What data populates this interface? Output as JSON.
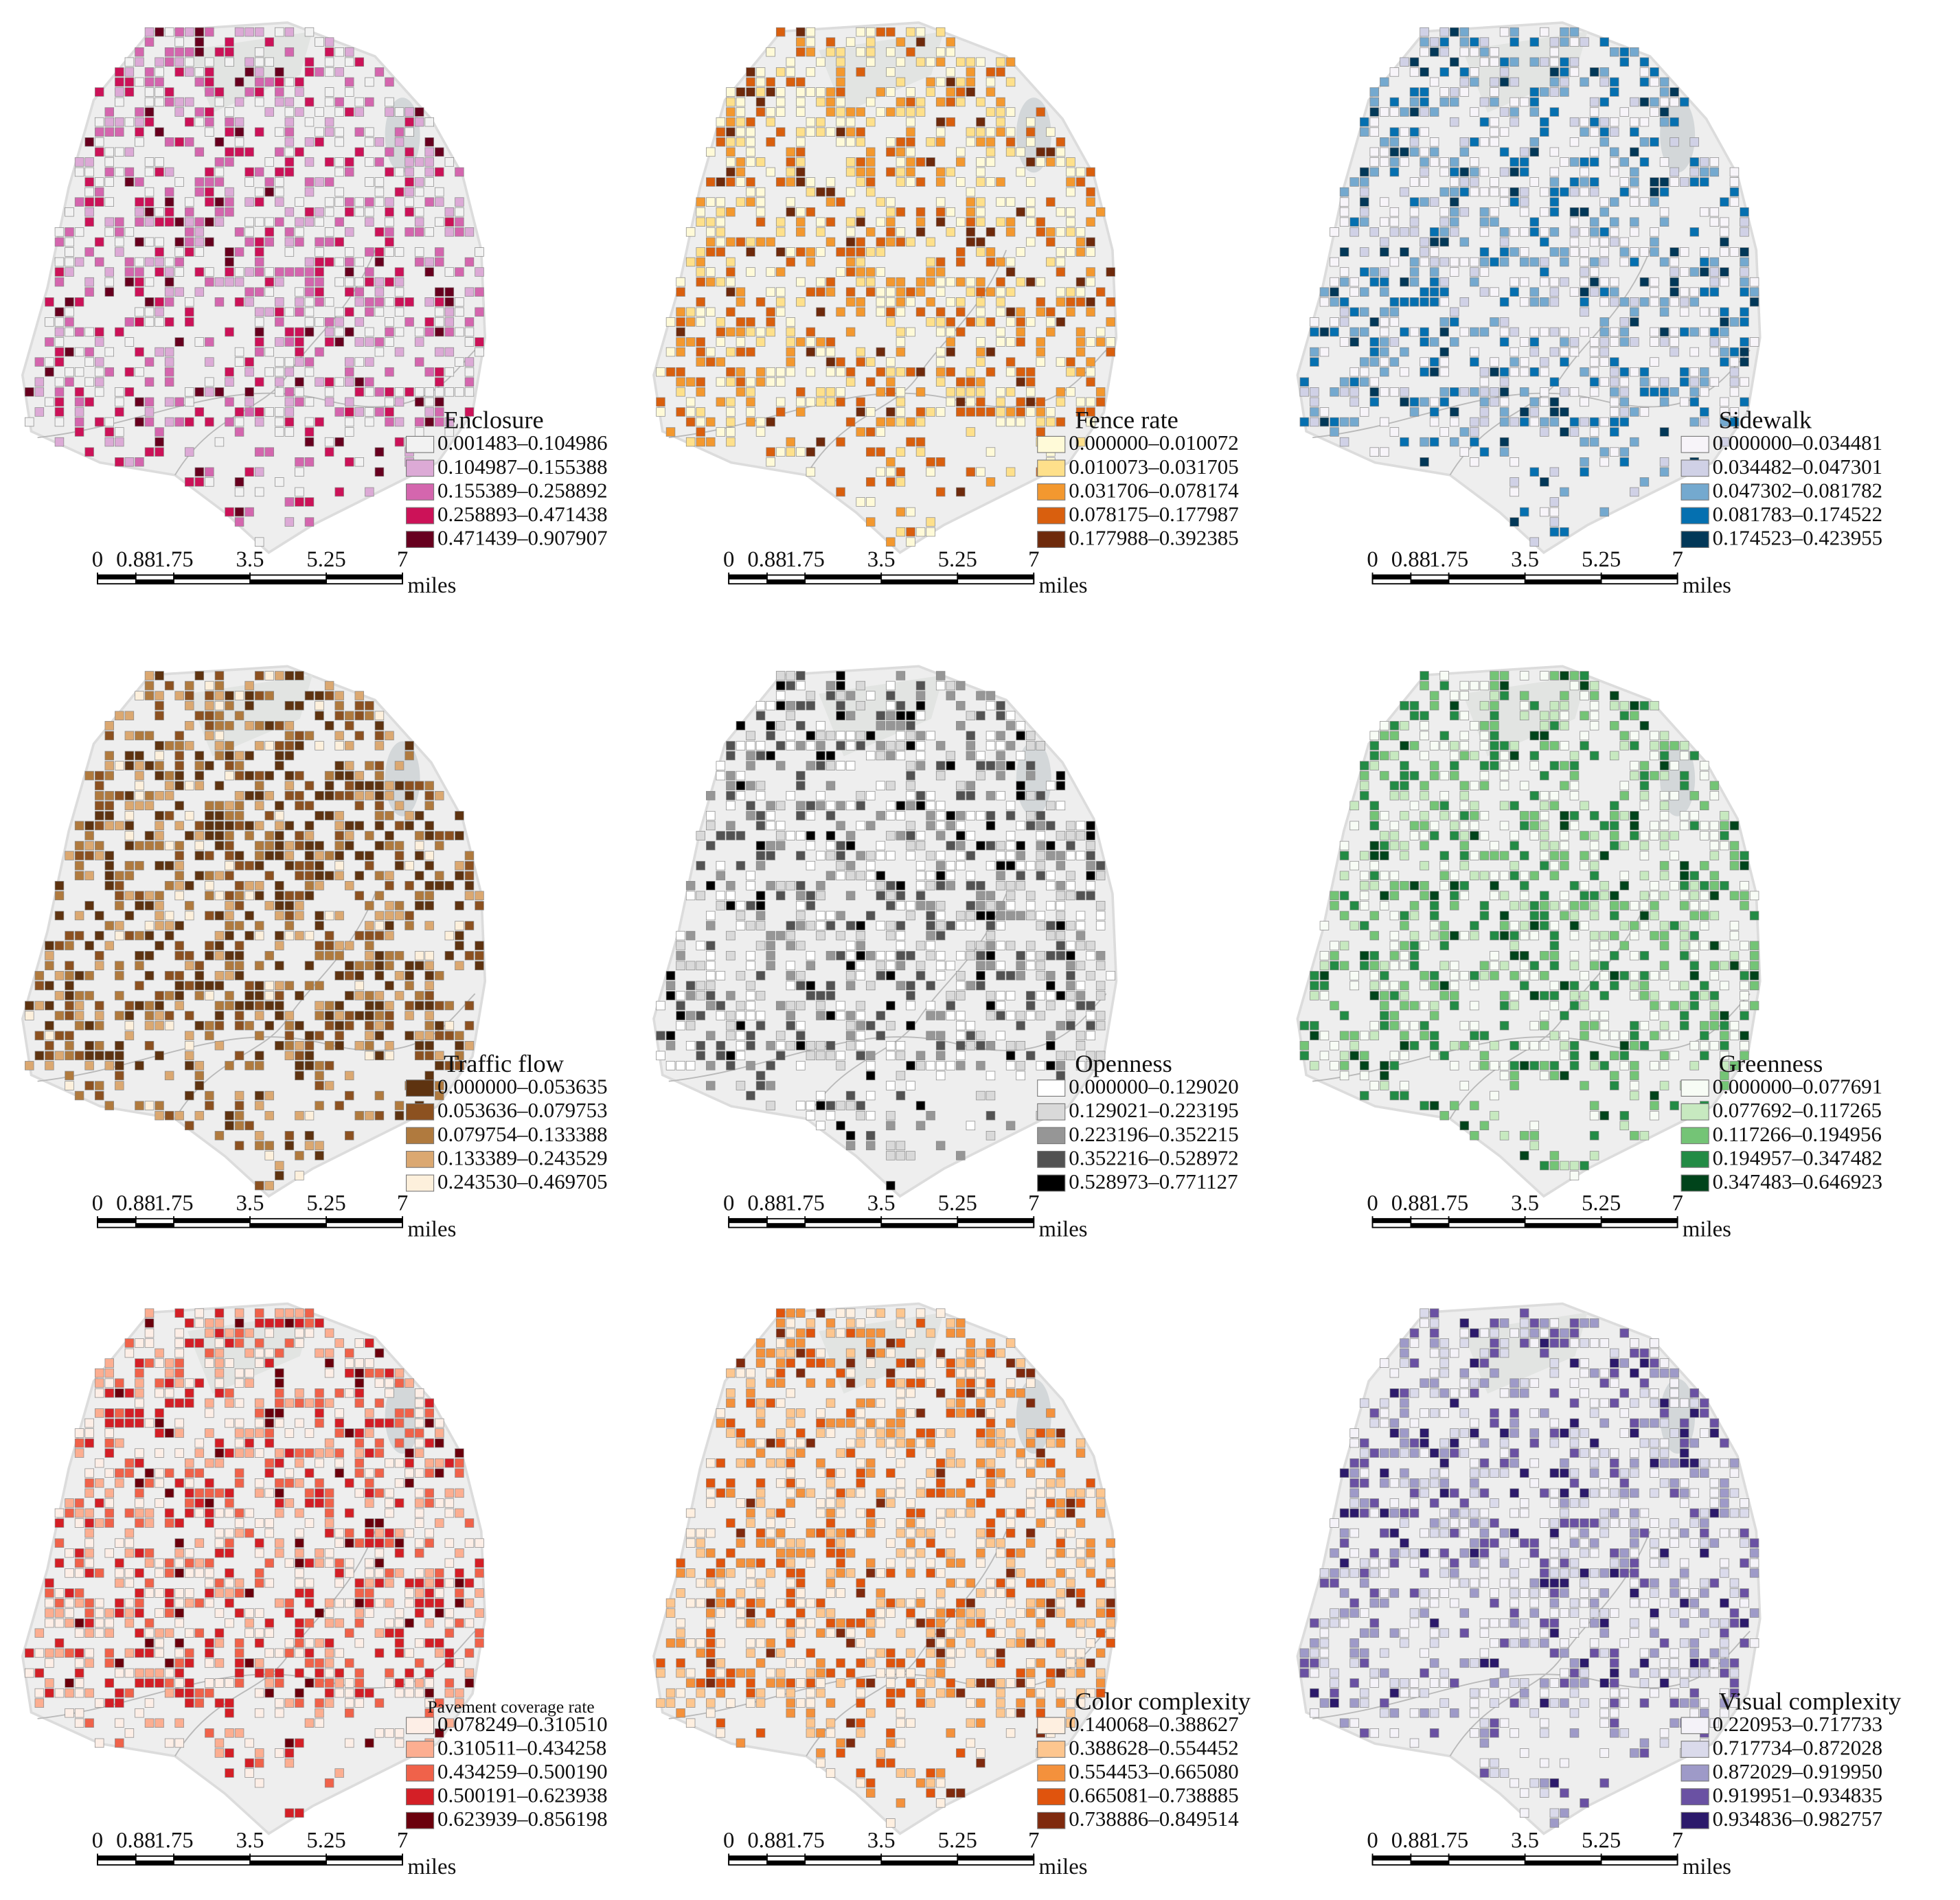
{
  "panels": [
    {
      "title": "Enclosure",
      "legend": [
        "0.001483–0.104986",
        "0.104987–0.155388",
        "0.155389–0.258892",
        "0.258893–0.471438",
        "0.471439–0.907907"
      ],
      "colors": [
        "#f2f2f2",
        "#dcaad6",
        "#d466ae",
        "#cc1258",
        "#67001f"
      ]
    },
    {
      "title": "Fence rate",
      "legend": [
        "0.000000–0.010072",
        "0.010073–0.031705",
        "0.031706–0.078174",
        "0.078175–0.177987",
        "0.177988–0.392385"
      ],
      "colors": [
        "#fffad8",
        "#fee08b",
        "#f3982f",
        "#d95f0e",
        "#6e2a0c"
      ]
    },
    {
      "title": "Sidewalk",
      "legend": [
        "0.000000–0.034481",
        "0.034482–0.047301",
        "0.047302–0.081782",
        "0.081783–0.174522",
        "0.174523–0.423955"
      ],
      "colors": [
        "#f7f4f9",
        "#d0d1e6",
        "#74a9cf",
        "#0570b0",
        "#023858"
      ]
    },
    {
      "title": "Traffic flow",
      "legend": [
        "0.000000–0.053635",
        "0.053636–0.079753",
        "0.079754–0.133388",
        "0.133389–0.243529",
        "0.243530–0.469705"
      ],
      "colors": [
        "#5e3310",
        "#8c5120",
        "#b07a3e",
        "#dba871",
        "#fdf0dc"
      ]
    },
    {
      "title": "Openness",
      "legend": [
        "0.000000–0.129020",
        "0.129021–0.223195",
        "0.223196–0.352215",
        "0.352216–0.528972",
        "0.528973–0.771127"
      ],
      "colors": [
        "#ffffff",
        "#d9d9d9",
        "#969696",
        "#525252",
        "#000000"
      ]
    },
    {
      "title": "Greenness",
      "legend": [
        "0.000000–0.077691",
        "0.077692–0.117265",
        "0.117266–0.194956",
        "0.194957–0.347482",
        "0.347483–0.646923"
      ],
      "colors": [
        "#f7fcf5",
        "#c7e9c0",
        "#74c476",
        "#238b45",
        "#00441b"
      ]
    },
    {
      "title": "Pavement coverage rate",
      "legend": [
        "0.078249–0.310510",
        "0.310511–0.434258",
        "0.434259–0.500190",
        "0.500191–0.623938",
        "0.623939–0.856198"
      ],
      "colors": [
        "#fdeee6",
        "#fcae91",
        "#f0624a",
        "#d41f26",
        "#6b000d"
      ]
    },
    {
      "title": "Color complexity",
      "legend": [
        "0.140068–0.388627",
        "0.388628–0.554452",
        "0.554453–0.665080",
        "0.665081–0.738885",
        "0.738886–0.849514"
      ],
      "colors": [
        "#feefe0",
        "#fdc68f",
        "#f4913c",
        "#e0540d",
        "#7f2a0e"
      ]
    },
    {
      "title": "Visual complexity",
      "legend": [
        "0.220953–0.717733",
        "0.717734–0.872028",
        "0.872029–0.919950",
        "0.919951–0.934835",
        "0.934836–0.982757"
      ],
      "colors": [
        "#f4f2f8",
        "#dadaeb",
        "#9e9ac8",
        "#6a51a3",
        "#2c1a6b"
      ]
    }
  ],
  "scale_bar": {
    "ticks": [
      0,
      0.88,
      1.75,
      3.5,
      5.25,
      7
    ],
    "unit": "miles"
  }
}
